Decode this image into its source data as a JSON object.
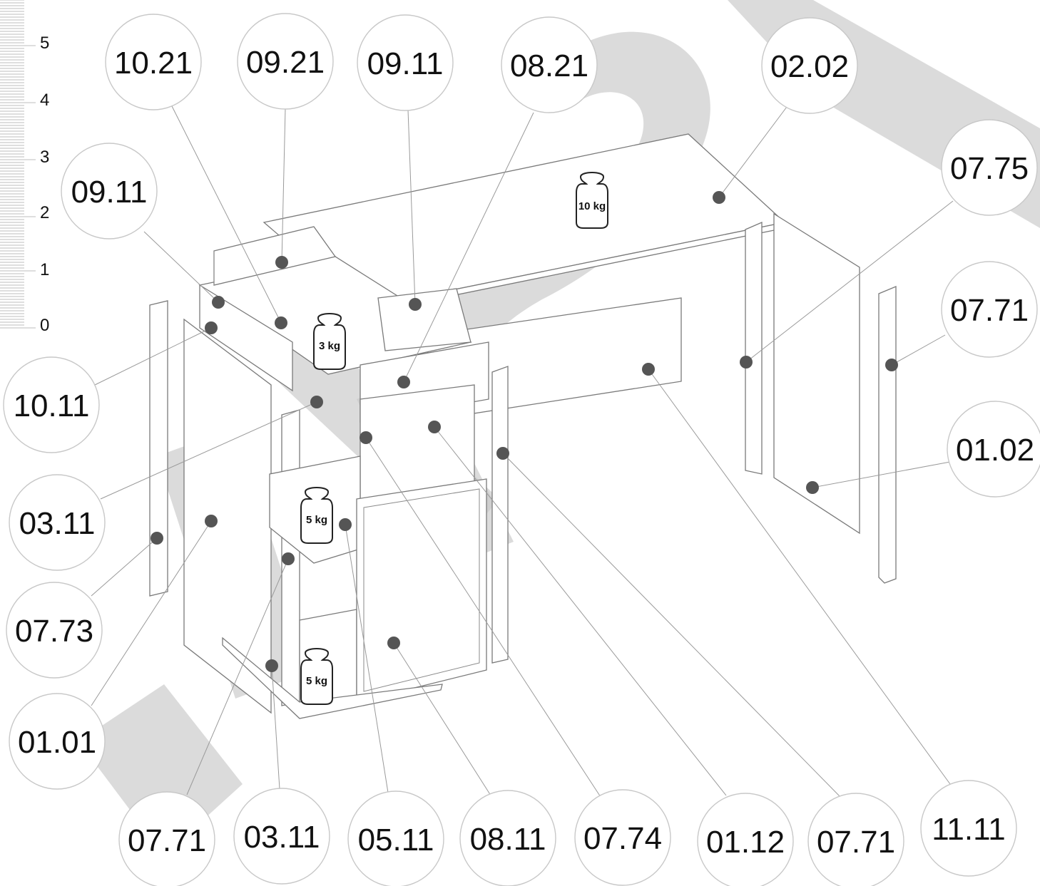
{
  "ruler": {
    "labels": [
      "5",
      "4",
      "3",
      "2",
      "1",
      "0"
    ]
  },
  "weights": [
    {
      "id": "top",
      "label": "10 kg"
    },
    {
      "id": "drawer-top",
      "label": "3 kg"
    },
    {
      "id": "shelf-middle",
      "label": "5 kg"
    },
    {
      "id": "shelf-bottom",
      "label": "5 kg"
    }
  ],
  "callouts": [
    {
      "id": "c-10-21",
      "label": "10.21"
    },
    {
      "id": "c-09-21",
      "label": "09.21"
    },
    {
      "id": "c-09-11-top",
      "label": "09.11"
    },
    {
      "id": "c-08-21",
      "label": "08.21"
    },
    {
      "id": "c-02-02",
      "label": "02.02"
    },
    {
      "id": "c-07-75",
      "label": "07.75"
    },
    {
      "id": "c-09-11-left",
      "label": "09.11"
    },
    {
      "id": "c-07-71-right",
      "label": "07.71"
    },
    {
      "id": "c-10-11",
      "label": "10.11"
    },
    {
      "id": "c-01-02",
      "label": "01.02"
    },
    {
      "id": "c-03-11-left",
      "label": "03.11"
    },
    {
      "id": "c-07-73",
      "label": "07.73"
    },
    {
      "id": "c-01-01",
      "label": "01.01"
    },
    {
      "id": "c-07-71-bottom-left",
      "label": "07.71"
    },
    {
      "id": "c-03-11-bottom",
      "label": "03.11"
    },
    {
      "id": "c-05-11",
      "label": "05.11"
    },
    {
      "id": "c-08-11",
      "label": "08.11"
    },
    {
      "id": "c-07-74",
      "label": "07.74"
    },
    {
      "id": "c-01-12",
      "label": "01.12"
    },
    {
      "id": "c-07-71-bottom-right",
      "label": "07.71"
    },
    {
      "id": "c-11-11",
      "label": "11.11"
    }
  ]
}
